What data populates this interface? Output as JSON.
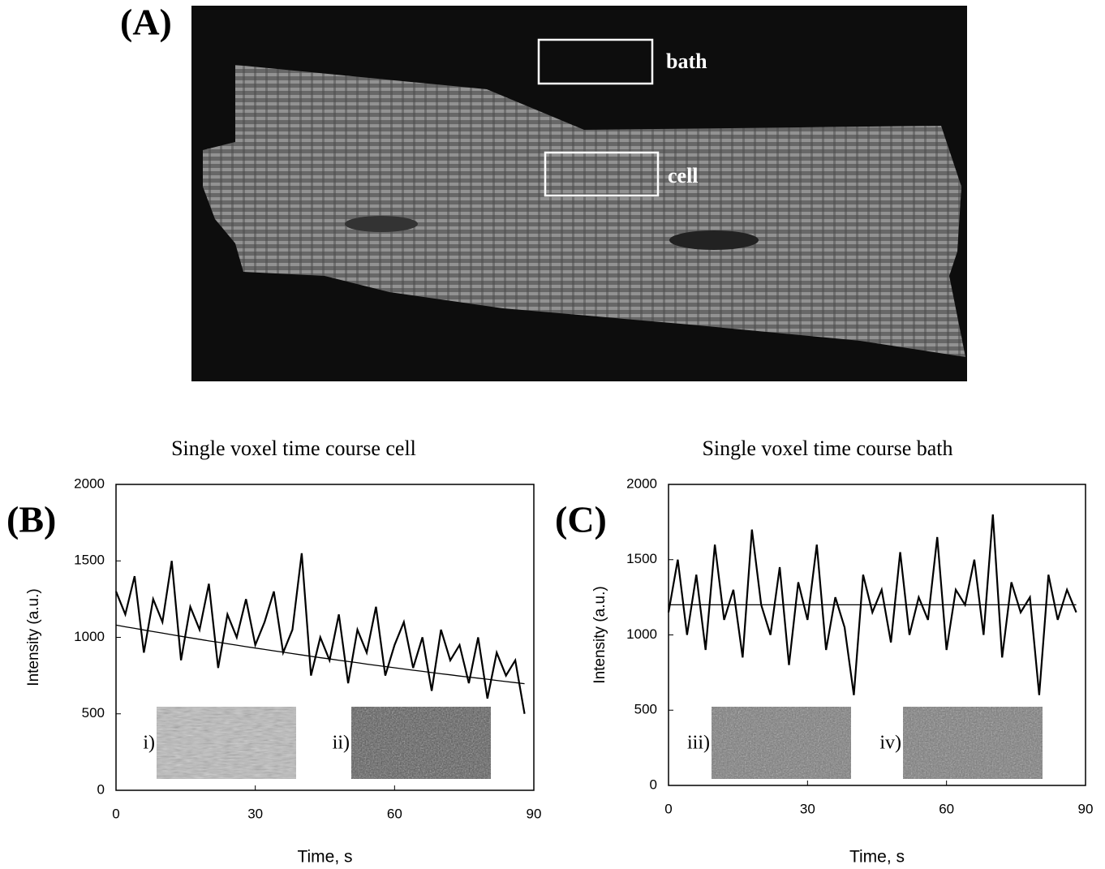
{
  "panel_a": {
    "label": "(A)",
    "regions": [
      "bath",
      "cell"
    ]
  },
  "chart_data": [
    {
      "type": "line",
      "panel_label": "(B)",
      "title": "Single voxel time course cell",
      "x_label": "Time, s",
      "y_label": "Intensity (a.u.)",
      "inset_labels": [
        "i)",
        "ii)"
      ],
      "x": [
        0,
        2,
        4,
        6,
        8,
        10,
        12,
        14,
        16,
        18,
        20,
        22,
        24,
        26,
        28,
        30,
        32,
        34,
        36,
        38,
        40,
        42,
        44,
        46,
        48,
        50,
        52,
        54,
        56,
        58,
        60,
        62,
        64,
        66,
        68,
        70,
        72,
        74,
        76,
        78,
        80,
        82,
        84,
        86,
        88
      ],
      "series": [
        {
          "color": "#000000",
          "values": [
            1300,
            1150,
            1400,
            900,
            1250,
            1100,
            1500,
            850,
            1200,
            1050,
            1350,
            800,
            1150,
            1000,
            1250,
            950,
            1100,
            1300,
            900,
            1050,
            1550,
            750,
            1000,
            850,
            1150,
            700,
            1050,
            900,
            1200,
            750,
            950,
            1100,
            800,
            1000,
            650,
            1050,
            850,
            950,
            700,
            1000,
            600,
            900,
            750,
            850,
            500
          ]
        },
        {
          "color": "#000000",
          "values": [
            1080,
            1069,
            1059,
            1048,
            1038,
            1028,
            1017,
            1007,
            997,
            987,
            977,
            968,
            958,
            949,
            939,
            930,
            921,
            912,
            903,
            894,
            885,
            876,
            867,
            859,
            850,
            842,
            834,
            825,
            817,
            809,
            801,
            793,
            785,
            778,
            770,
            762,
            755,
            747,
            740,
            733,
            726,
            718,
            711,
            704,
            697
          ]
        }
      ],
      "xlim": [
        0,
        90
      ],
      "xticks": [
        0,
        30,
        60,
        90
      ],
      "ylim": [
        0,
        2000
      ],
      "yticks": [
        0,
        500,
        1000,
        1500,
        2000
      ]
    },
    {
      "type": "line",
      "panel_label": "(C)",
      "title": "Single voxel time course bath",
      "x_label": "Time, s",
      "y_label": "Intensity (a.u.)",
      "inset_labels": [
        "iii)",
        "iv)"
      ],
      "x": [
        0,
        2,
        4,
        6,
        8,
        10,
        12,
        14,
        16,
        18,
        20,
        22,
        24,
        26,
        28,
        30,
        32,
        34,
        36,
        38,
        40,
        42,
        44,
        46,
        48,
        50,
        52,
        54,
        56,
        58,
        60,
        62,
        64,
        66,
        68,
        70,
        72,
        74,
        76,
        78,
        80,
        82,
        84,
        86,
        88
      ],
      "series": [
        {
          "color": "#000000",
          "values": [
            1150,
            1500,
            1000,
            1400,
            900,
            1600,
            1100,
            1300,
            850,
            1700,
            1200,
            1000,
            1450,
            800,
            1350,
            1100,
            1600,
            900,
            1250,
            1050,
            600,
            1400,
            1150,
            1300,
            950,
            1550,
            1000,
            1250,
            1100,
            1650,
            900,
            1300,
            1200,
            1500,
            1000,
            1800,
            850,
            1350,
            1150,
            1250,
            600,
            1400,
            1100,
            1300,
            1150
          ]
        },
        {
          "color": "#000000",
          "values": [
            1200,
            1200,
            1200,
            1200,
            1200,
            1200,
            1200,
            1200,
            1200,
            1200,
            1200,
            1200,
            1200,
            1200,
            1200,
            1200,
            1200,
            1200,
            1200,
            1200,
            1200,
            1200,
            1200,
            1200,
            1200,
            1200,
            1200,
            1200,
            1200,
            1200,
            1200,
            1200,
            1200,
            1200,
            1200,
            1200,
            1200,
            1200,
            1200,
            1200,
            1200,
            1200,
            1200,
            1200,
            1200
          ]
        }
      ],
      "xlim": [
        0,
        90
      ],
      "xticks": [
        0,
        30,
        60,
        90
      ],
      "ylim": [
        0,
        2000
      ],
      "yticks": [
        0,
        500,
        1000,
        1500,
        2000
      ]
    }
  ]
}
